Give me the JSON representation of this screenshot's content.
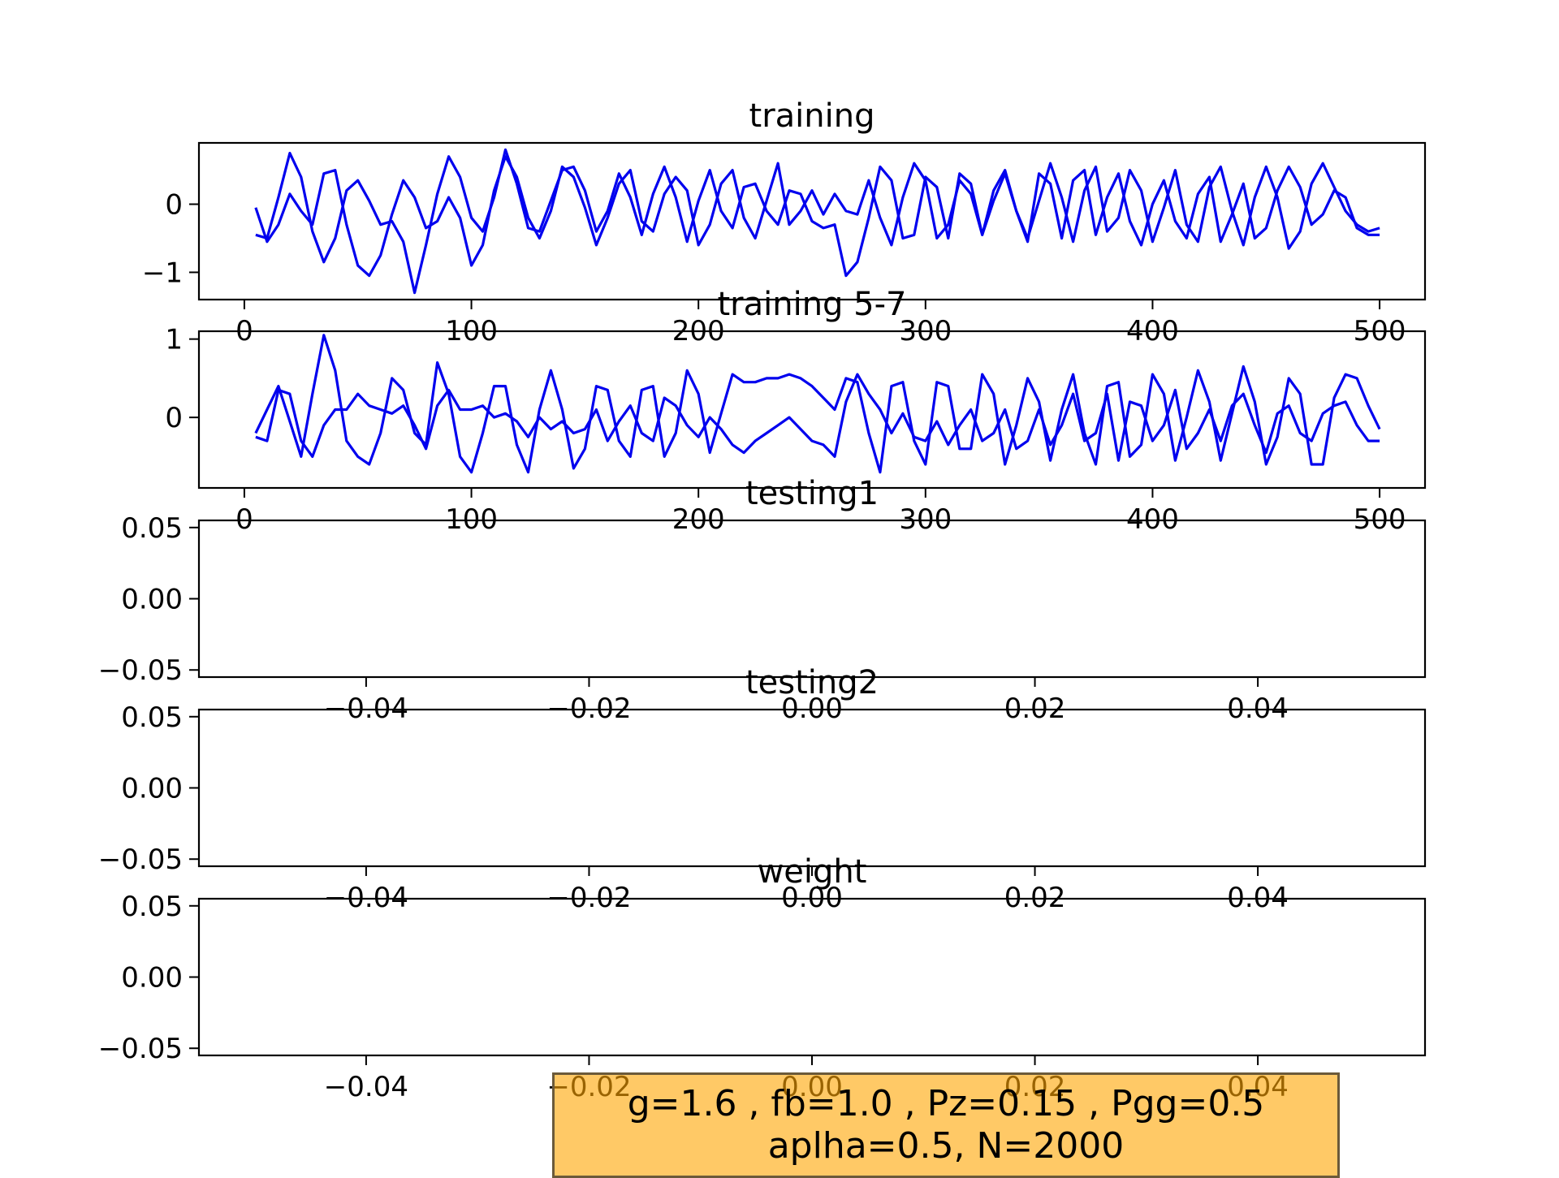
{
  "chart_data": [
    {
      "type": "line",
      "title": "training",
      "xlim": [
        -20,
        520
      ],
      "ylim": [
        -1.4,
        0.9
      ],
      "x_ticks": [
        0,
        100,
        200,
        300,
        400,
        500
      ],
      "x_tick_labels": [
        "0",
        "100",
        "200",
        "300",
        "400",
        "500"
      ],
      "y_ticks": [
        0,
        -1
      ],
      "y_tick_labels": [
        "0",
        "−1"
      ],
      "color": "#0000ee",
      "series": [
        {
          "x": [
            5,
            10,
            15,
            20,
            25,
            30,
            35,
            40,
            45,
            50,
            55,
            60,
            65,
            70,
            75,
            80,
            85,
            90,
            95,
            100,
            105,
            110,
            115,
            120,
            125,
            130,
            135,
            140,
            145,
            150,
            155,
            160,
            165,
            170,
            175,
            180,
            185,
            190,
            195,
            200,
            205,
            210,
            215,
            220,
            225,
            230,
            235,
            240,
            245,
            250,
            255,
            260,
            265,
            270,
            275,
            280,
            285,
            290,
            295,
            300,
            305,
            310,
            315,
            320,
            325,
            330,
            335,
            340,
            345,
            350,
            355,
            360,
            365,
            370,
            375,
            380,
            385,
            390,
            395,
            400,
            405,
            410,
            415,
            420,
            425,
            430,
            435,
            440,
            445,
            450,
            455,
            460,
            465,
            470,
            475,
            480,
            485,
            490,
            495,
            500
          ],
          "values": [
            -0.45,
            -0.5,
            0.1,
            0.75,
            0.4,
            -0.4,
            -0.85,
            -0.5,
            0.2,
            0.35,
            0.05,
            -0.3,
            -0.25,
            -0.55,
            -1.3,
            -0.6,
            0.15,
            0.7,
            0.4,
            -0.2,
            -0.4,
            0.1,
            0.8,
            0.3,
            -0.35,
            -0.4,
            0.05,
            0.5,
            0.55,
            0.2,
            -0.4,
            -0.1,
            0.45,
            0.1,
            -0.45,
            0.15,
            0.55,
            0.1,
            -0.55,
            0.05,
            0.5,
            -0.1,
            -0.35,
            0.25,
            0.3,
            -0.1,
            -0.3,
            0.2,
            0.15,
            -0.25,
            -0.35,
            -0.3,
            -1.05,
            -0.85,
            -0.2,
            0.55,
            0.35,
            -0.5,
            -0.45,
            0.4,
            0.25,
            -0.5,
            0.45,
            0.3,
            -0.45,
            0.2,
            0.5,
            -0.1,
            -0.55,
            0.45,
            0.3,
            -0.5,
            0.35,
            0.5,
            -0.45,
            0.1,
            0.45,
            -0.25,
            -0.6,
            0.0,
            0.35,
            -0.25,
            -0.5,
            0.15,
            0.4,
            -0.55,
            -0.15,
            0.3,
            -0.5,
            -0.35,
            0.2,
            0.55,
            0.25,
            -0.3,
            -0.15,
            0.2,
            0.1,
            -0.35,
            -0.45,
            -0.45
          ]
        },
        {
          "x": [
            5,
            10,
            15,
            20,
            25,
            30,
            35,
            40,
            45,
            50,
            55,
            60,
            65,
            70,
            75,
            80,
            85,
            90,
            95,
            100,
            105,
            110,
            115,
            120,
            125,
            130,
            135,
            140,
            145,
            150,
            155,
            160,
            165,
            170,
            175,
            180,
            185,
            190,
            195,
            200,
            205,
            210,
            215,
            220,
            225,
            230,
            235,
            240,
            245,
            250,
            255,
            260,
            265,
            270,
            275,
            280,
            285,
            290,
            295,
            300,
            305,
            310,
            315,
            320,
            325,
            330,
            335,
            340,
            345,
            350,
            355,
            360,
            365,
            370,
            375,
            380,
            385,
            390,
            395,
            400,
            405,
            410,
            415,
            420,
            425,
            430,
            435,
            440,
            445,
            450,
            455,
            460,
            465,
            470,
            475,
            480,
            485,
            490,
            495,
            500
          ],
          "values": [
            -0.05,
            -0.55,
            -0.3,
            0.15,
            -0.1,
            -0.3,
            0.45,
            0.5,
            -0.3,
            -0.9,
            -1.05,
            -0.75,
            -0.15,
            0.35,
            0.1,
            -0.35,
            -0.25,
            0.1,
            -0.2,
            -0.9,
            -0.6,
            0.2,
            0.7,
            0.4,
            -0.2,
            -0.5,
            -0.1,
            0.55,
            0.4,
            -0.05,
            -0.6,
            -0.2,
            0.3,
            0.5,
            -0.25,
            -0.4,
            0.15,
            0.4,
            0.2,
            -0.6,
            -0.3,
            0.3,
            0.5,
            -0.2,
            -0.5,
            0.05,
            0.6,
            -0.3,
            -0.1,
            0.2,
            -0.15,
            0.15,
            -0.1,
            -0.15,
            0.35,
            -0.2,
            -0.6,
            0.1,
            0.6,
            0.35,
            -0.5,
            -0.3,
            0.35,
            0.15,
            -0.45,
            0.05,
            0.45,
            -0.1,
            -0.5,
            0.05,
            0.6,
            0.1,
            -0.55,
            0.2,
            0.55,
            -0.4,
            -0.2,
            0.5,
            0.2,
            -0.55,
            -0.05,
            0.5,
            -0.3,
            -0.55,
            0.25,
            0.55,
            -0.1,
            -0.6,
            0.1,
            0.55,
            0.1,
            -0.65,
            -0.4,
            0.3,
            0.6,
            0.25,
            -0.1,
            -0.3,
            -0.4,
            -0.35
          ]
        }
      ]
    },
    {
      "type": "line",
      "title": "training 5-7",
      "xlim": [
        -20,
        520
      ],
      "ylim": [
        -0.9,
        1.1
      ],
      "x_ticks": [
        0,
        100,
        200,
        300,
        400,
        500
      ],
      "x_tick_labels": [
        "0",
        "100",
        "200",
        "300",
        "400",
        "500"
      ],
      "y_ticks": [
        1,
        0
      ],
      "y_tick_labels": [
        "1",
        "0"
      ],
      "color": "#0000ee",
      "series": [
        {
          "x": [
            5,
            10,
            15,
            20,
            25,
            30,
            35,
            40,
            45,
            50,
            55,
            60,
            65,
            70,
            75,
            80,
            85,
            90,
            95,
            100,
            105,
            110,
            115,
            120,
            125,
            130,
            135,
            140,
            145,
            150,
            155,
            160,
            165,
            170,
            175,
            180,
            185,
            190,
            195,
            200,
            205,
            210,
            215,
            220,
            225,
            230,
            235,
            240,
            245,
            250,
            255,
            260,
            265,
            270,
            275,
            280,
            285,
            290,
            295,
            300,
            305,
            310,
            315,
            320,
            325,
            330,
            335,
            340,
            345,
            350,
            355,
            360,
            365,
            370,
            375,
            380,
            385,
            390,
            395,
            400,
            405,
            410,
            415,
            420,
            425,
            430,
            435,
            440,
            445,
            450,
            455,
            460,
            465,
            470,
            475,
            480,
            485,
            490,
            495,
            500
          ],
          "values": [
            -0.2,
            0.1,
            0.4,
            -0.05,
            -0.5,
            0.3,
            1.05,
            0.6,
            -0.3,
            -0.5,
            -0.6,
            -0.2,
            0.5,
            0.35,
            -0.2,
            -0.35,
            0.7,
            0.3,
            -0.5,
            -0.7,
            -0.2,
            0.4,
            0.4,
            -0.35,
            -0.7,
            0.1,
            0.6,
            0.1,
            -0.65,
            -0.4,
            0.4,
            0.35,
            -0.3,
            -0.5,
            0.35,
            0.4,
            -0.5,
            -0.2,
            0.6,
            0.3,
            -0.45,
            0.05,
            0.55,
            0.45,
            0.45,
            0.5,
            0.5,
            0.55,
            0.5,
            0.4,
            0.25,
            0.1,
            0.5,
            0.45,
            -0.2,
            -0.7,
            0.4,
            0.45,
            -0.3,
            -0.6,
            0.45,
            0.4,
            -0.4,
            -0.4,
            0.55,
            0.3,
            -0.6,
            -0.1,
            0.5,
            0.2,
            -0.55,
            0.1,
            0.55,
            -0.2,
            -0.6,
            0.4,
            0.45,
            -0.5,
            -0.35,
            0.55,
            0.3,
            -0.55,
            0.0,
            0.6,
            0.2,
            -0.55,
            0.05,
            0.65,
            0.2,
            -0.6,
            -0.25,
            0.5,
            0.3,
            -0.6,
            -0.6,
            0.25,
            0.55,
            0.5,
            0.15,
            -0.15
          ]
        },
        {
          "x": [
            5,
            10,
            15,
            20,
            25,
            30,
            35,
            40,
            45,
            50,
            55,
            60,
            65,
            70,
            75,
            80,
            85,
            90,
            95,
            100,
            105,
            110,
            115,
            120,
            125,
            130,
            135,
            140,
            145,
            150,
            155,
            160,
            165,
            170,
            175,
            180,
            185,
            190,
            195,
            200,
            205,
            210,
            215,
            220,
            225,
            230,
            235,
            240,
            245,
            250,
            255,
            260,
            265,
            270,
            275,
            280,
            285,
            290,
            295,
            300,
            305,
            310,
            315,
            320,
            325,
            330,
            335,
            340,
            345,
            350,
            355,
            360,
            365,
            370,
            375,
            380,
            385,
            390,
            395,
            400,
            405,
            410,
            415,
            420,
            425,
            430,
            435,
            440,
            445,
            450,
            455,
            460,
            465,
            470,
            475,
            480,
            485,
            490,
            495,
            500
          ],
          "values": [
            -0.25,
            -0.3,
            0.35,
            0.3,
            -0.3,
            -0.5,
            -0.1,
            0.1,
            0.1,
            0.3,
            0.15,
            0.1,
            0.05,
            0.15,
            -0.1,
            -0.4,
            0.15,
            0.35,
            0.1,
            0.1,
            0.15,
            0.0,
            0.05,
            -0.05,
            -0.25,
            0.0,
            -0.15,
            -0.05,
            -0.2,
            -0.15,
            0.1,
            -0.3,
            -0.05,
            0.15,
            -0.2,
            -0.3,
            0.25,
            0.15,
            -0.1,
            -0.25,
            0.0,
            -0.15,
            -0.35,
            -0.45,
            -0.3,
            -0.2,
            -0.1,
            0.0,
            -0.15,
            -0.3,
            -0.35,
            -0.5,
            0.2,
            0.55,
            0.3,
            0.1,
            -0.2,
            0.05,
            -0.25,
            -0.3,
            -0.05,
            -0.35,
            -0.1,
            0.1,
            -0.3,
            -0.2,
            0.1,
            -0.4,
            -0.3,
            0.1,
            -0.35,
            -0.1,
            0.3,
            -0.3,
            -0.2,
            0.3,
            -0.55,
            0.2,
            0.15,
            -0.3,
            -0.1,
            0.35,
            -0.4,
            -0.2,
            0.1,
            -0.3,
            0.15,
            0.3,
            -0.1,
            -0.45,
            0.05,
            0.15,
            -0.2,
            -0.3,
            0.05,
            0.15,
            0.2,
            -0.1,
            -0.3,
            -0.3
          ]
        }
      ]
    },
    {
      "type": "line",
      "title": "testing1",
      "xlim": [
        -0.055,
        0.055
      ],
      "ylim": [
        -0.055,
        0.055
      ],
      "x_ticks": [
        -0.04,
        -0.02,
        0.0,
        0.02,
        0.04
      ],
      "x_tick_labels": [
        "−0.04",
        "−0.02",
        "0.00",
        "0.02",
        "0.04"
      ],
      "y_ticks": [
        0.05,
        0.0,
        -0.05
      ],
      "y_tick_labels": [
        "0.05",
        "0.00",
        "−0.05"
      ],
      "series": []
    },
    {
      "type": "line",
      "title": "testing2",
      "xlim": [
        -0.055,
        0.055
      ],
      "ylim": [
        -0.055,
        0.055
      ],
      "x_ticks": [
        -0.04,
        -0.02,
        0.0,
        0.02,
        0.04
      ],
      "x_tick_labels": [
        "−0.04",
        "−0.02",
        "0.00",
        "0.02",
        "0.04"
      ],
      "y_ticks": [
        0.05,
        0.0,
        -0.05
      ],
      "y_tick_labels": [
        "0.05",
        "0.00",
        "−0.05"
      ],
      "series": []
    },
    {
      "type": "line",
      "title": "weight",
      "xlim": [
        -0.055,
        0.055
      ],
      "ylim": [
        -0.055,
        0.055
      ],
      "x_ticks": [
        -0.04,
        -0.02,
        0.0,
        0.02,
        0.04
      ],
      "x_tick_labels": [
        "−0.04",
        "−0.02",
        "0.00",
        "0.02",
        "0.04"
      ],
      "y_ticks": [
        0.05,
        0.0,
        -0.05
      ],
      "y_tick_labels": [
        "0.05",
        "0.00",
        "−0.05"
      ],
      "series": []
    }
  ],
  "annotation": {
    "line1": "g=1.6 , fb=1.0 , Pz=0.15 , Pgg=0.5",
    "line2": "aplha=0.5, N=2000",
    "background": "#ffc966"
  }
}
